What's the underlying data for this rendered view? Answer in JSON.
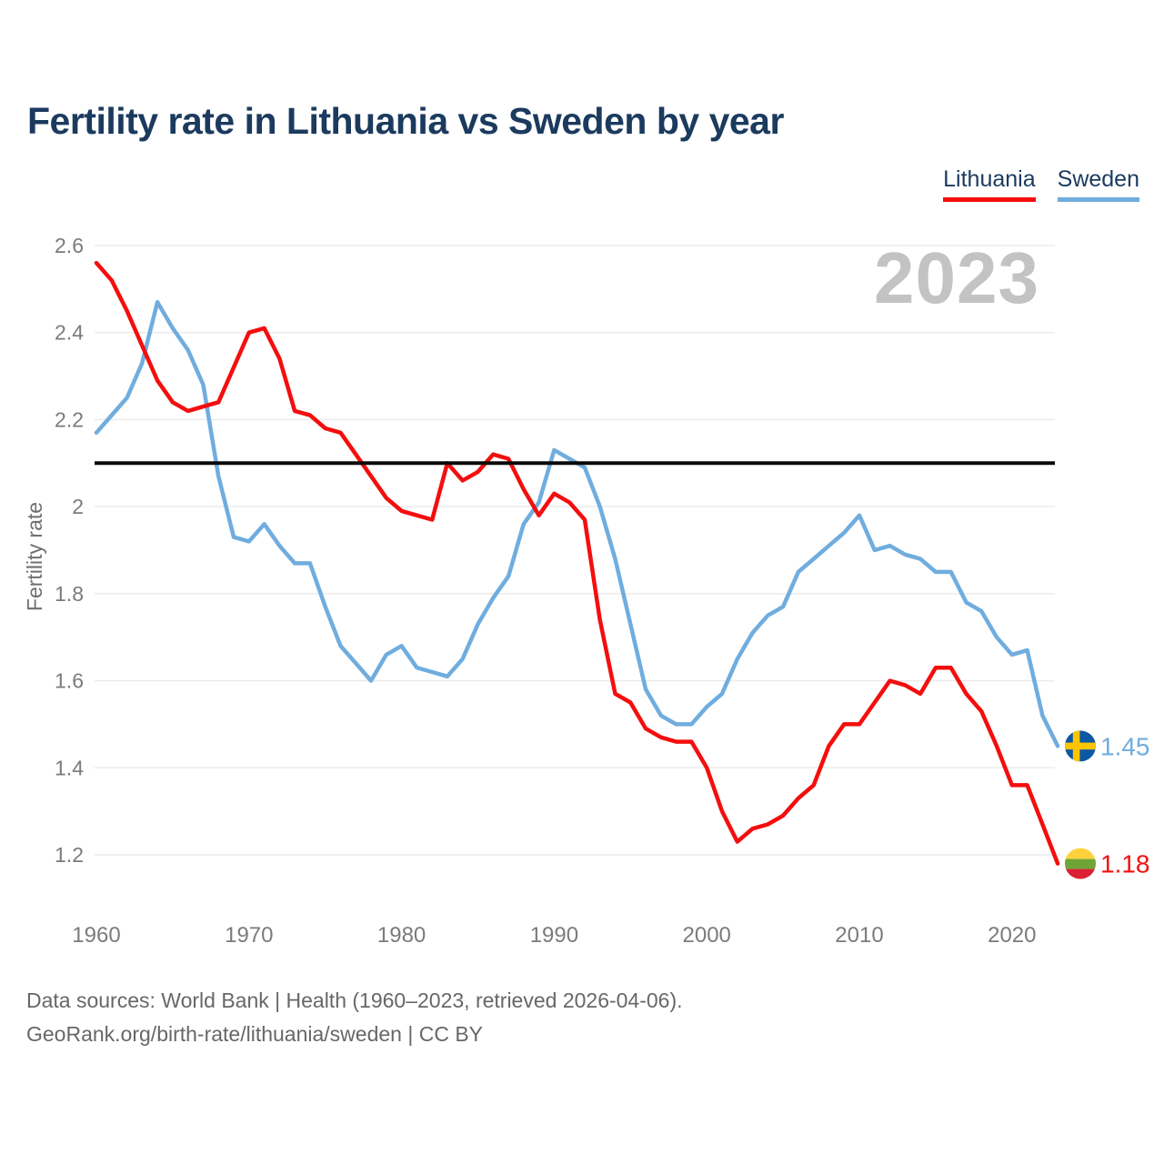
{
  "page": {
    "title": "Fertility rate in Lithuania vs Sweden by year",
    "watermark_year": "2023",
    "footer_line1": "Data sources: World Bank | Health (1960–2023, retrieved 2026-04-06).",
    "footer_line2": "GeoRank.org/birth-rate/lithuania/sweden | CC BY"
  },
  "legend": {
    "items": [
      {
        "label": "Lithuania",
        "color": "#f40e0e"
      },
      {
        "label": "Sweden",
        "color": "#70adde"
      }
    ]
  },
  "chart_data": {
    "type": "line",
    "title": "Fertility rate in Lithuania vs Sweden by year",
    "xlabel": "",
    "ylabel": "Fertility rate",
    "x_ticks": [
      1960,
      1970,
      1980,
      1990,
      2000,
      2010,
      2020
    ],
    "y_ticks": [
      2.6,
      2.4,
      2.2,
      2,
      1.8,
      1.6,
      1.4,
      1.2
    ],
    "y_tick_labels": [
      "2.6",
      "2.4",
      "2.2",
      "2",
      "1.8",
      "1.6",
      "1.4",
      "1.2"
    ],
    "reference_line_y": 2.1,
    "grid": true,
    "legend_position": "top-right",
    "xlim": [
      1960,
      2023
    ],
    "ylim": [
      1.1,
      2.65
    ],
    "x": [
      1960,
      1961,
      1962,
      1963,
      1964,
      1965,
      1966,
      1967,
      1968,
      1969,
      1970,
      1971,
      1972,
      1973,
      1974,
      1975,
      1976,
      1977,
      1978,
      1979,
      1980,
      1981,
      1982,
      1983,
      1984,
      1985,
      1986,
      1987,
      1988,
      1989,
      1990,
      1991,
      1992,
      1993,
      1994,
      1995,
      1996,
      1997,
      1998,
      1999,
      2000,
      2001,
      2002,
      2003,
      2004,
      2005,
      2006,
      2007,
      2008,
      2009,
      2010,
      2011,
      2012,
      2013,
      2014,
      2015,
      2016,
      2017,
      2018,
      2019,
      2020,
      2021,
      2022,
      2023
    ],
    "series": [
      {
        "name": "Sweden",
        "color": "#70adde",
        "end_label": "1.45",
        "flag": "sweden",
        "values": [
          2.17,
          2.21,
          2.25,
          2.33,
          2.47,
          2.41,
          2.36,
          2.28,
          2.07,
          1.93,
          1.92,
          1.96,
          1.91,
          1.87,
          1.87,
          1.77,
          1.68,
          1.64,
          1.6,
          1.66,
          1.68,
          1.63,
          1.62,
          1.61,
          1.65,
          1.73,
          1.79,
          1.84,
          1.96,
          2.01,
          2.13,
          2.11,
          2.09,
          2.0,
          1.88,
          1.73,
          1.58,
          1.52,
          1.5,
          1.5,
          1.54,
          1.57,
          1.65,
          1.71,
          1.75,
          1.77,
          1.85,
          1.88,
          1.91,
          1.94,
          1.98,
          1.9,
          1.91,
          1.89,
          1.88,
          1.85,
          1.85,
          1.78,
          1.76,
          1.7,
          1.66,
          1.67,
          1.52,
          1.45
        ]
      },
      {
        "name": "Lithuania",
        "color": "#f40e0e",
        "end_label": "1.18",
        "flag": "lithuania",
        "values": [
          2.56,
          2.52,
          2.45,
          2.37,
          2.29,
          2.24,
          2.22,
          2.23,
          2.24,
          2.32,
          2.4,
          2.41,
          2.34,
          2.22,
          2.21,
          2.18,
          2.17,
          2.12,
          2.07,
          2.02,
          1.99,
          1.98,
          1.97,
          2.1,
          2.06,
          2.08,
          2.12,
          2.11,
          2.04,
          1.98,
          2.03,
          2.01,
          1.97,
          1.74,
          1.57,
          1.55,
          1.49,
          1.47,
          1.46,
          1.46,
          1.4,
          1.3,
          1.23,
          1.26,
          1.27,
          1.29,
          1.33,
          1.36,
          1.45,
          1.5,
          1.5,
          1.55,
          1.6,
          1.59,
          1.57,
          1.63,
          1.63,
          1.57,
          1.53,
          1.45,
          1.36,
          1.36,
          1.27,
          1.18
        ]
      }
    ]
  },
  "flags": {
    "sweden": {
      "base": "#0b58a5",
      "cross": "#fdc500"
    },
    "lithuania": {
      "yellow": "#fdd23c",
      "green": "#6fa437",
      "red": "#dc2033"
    }
  },
  "style_colors": {
    "gridline": "#ececec",
    "reference_line": "#0a0a0a",
    "axis_text": "#7b7b7b",
    "title_text": "#1b3a5e"
  }
}
